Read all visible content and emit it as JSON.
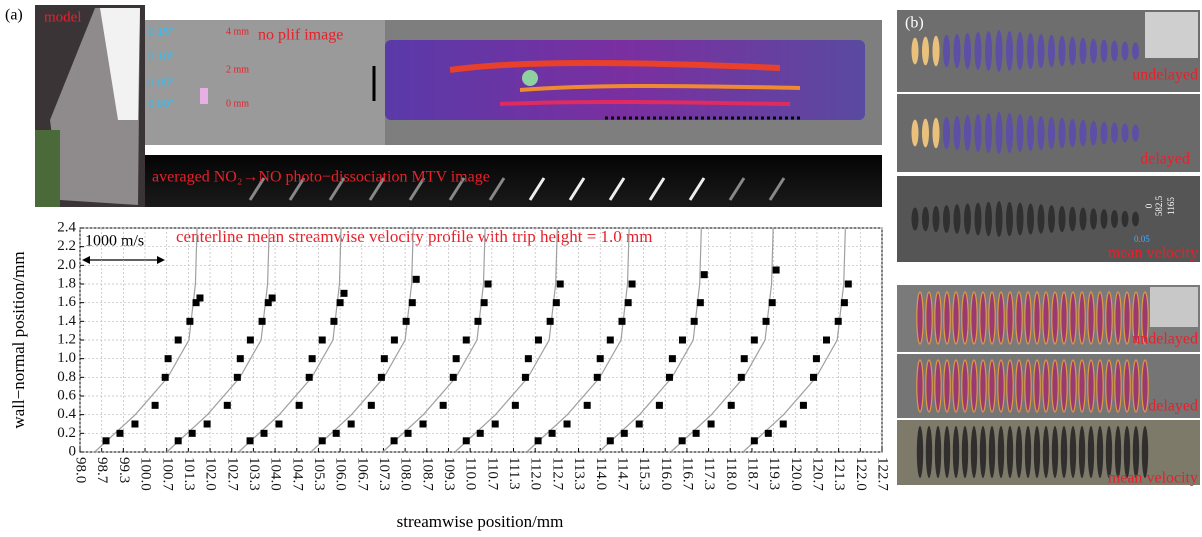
{
  "figure": {
    "panel_a": "(a)",
    "panel_b": "(b)",
    "model": "model",
    "plif": "no plif image",
    "mtv": "averaged NO₂→NO photo−dissociation MTV image",
    "scale_in": [
      "0.15″",
      "0.10″",
      "0.05″",
      "0.00″"
    ],
    "scale_mm": [
      "4 mm",
      "2 mm",
      "0 mm"
    ],
    "b_upper": [
      "undelayed",
      "delayed",
      "mean velocity"
    ],
    "b_lower": [
      "undelayed",
      "delayed",
      "mean velocity"
    ],
    "colorbar": [
      "0",
      "582.5",
      "1165"
    ],
    "colorbar_min": "0.05"
  },
  "chart_data": {
    "type": "scatter",
    "title": "centerline mean streamwise velocity profile with trip height = 1.0 mm",
    "xlabel": "streamwise position/mm",
    "ylabel": "wall−normal position/mm",
    "scale_bar": "1000 m/s",
    "grid": true,
    "xlim": [
      98,
      122.667
    ],
    "ylim": [
      0,
      2.4
    ],
    "xticks": [
      {
        "value": 98,
        "label": "98.0"
      },
      {
        "value": 98.667,
        "label": "98.7"
      },
      {
        "value": 99.333,
        "label": "99.3"
      },
      {
        "value": 100,
        "label": "100.0"
      },
      {
        "value": 100.667,
        "label": "100.7"
      },
      {
        "value": 101.333,
        "label": "101.3"
      },
      {
        "value": 102,
        "label": "102.0"
      },
      {
        "value": 102.667,
        "label": "102.7"
      },
      {
        "value": 103.333,
        "label": "103.3"
      },
      {
        "value": 104,
        "label": "104.0"
      },
      {
        "value": 104.667,
        "label": "104.7"
      },
      {
        "value": 105.333,
        "label": "105.3"
      },
      {
        "value": 106,
        "label": "106.0"
      },
      {
        "value": 106.667,
        "label": "106.7"
      },
      {
        "value": 107.333,
        "label": "107.3"
      },
      {
        "value": 108,
        "label": "108.0"
      },
      {
        "value": 108.667,
        "label": "108.7"
      },
      {
        "value": 109.333,
        "label": "109.3"
      },
      {
        "value": 110,
        "label": "110.0"
      },
      {
        "value": 110.667,
        "label": "110.7"
      },
      {
        "value": 111.333,
        "label": "111.3"
      },
      {
        "value": 112,
        "label": "112.0"
      },
      {
        "value": 112.667,
        "label": "112.7"
      },
      {
        "value": 113.333,
        "label": "113.3"
      },
      {
        "value": 114,
        "label": "114.0"
      },
      {
        "value": 114.667,
        "label": "114.7"
      },
      {
        "value": 115.333,
        "label": "115.3"
      },
      {
        "value": 116,
        "label": "116.0"
      },
      {
        "value": 116.667,
        "label": "116.7"
      },
      {
        "value": 117.333,
        "label": "117.3"
      },
      {
        "value": 118,
        "label": "118.0"
      },
      {
        "value": 118.667,
        "label": "118.7"
      },
      {
        "value": 119.333,
        "label": "119.3"
      },
      {
        "value": 120,
        "label": "120.0"
      },
      {
        "value": 120.667,
        "label": "120.7"
      },
      {
        "value": 121.333,
        "label": "121.3"
      },
      {
        "value": 122,
        "label": "122.0"
      },
      {
        "value": 122.667,
        "label": "122.7"
      }
    ],
    "yticks": [
      0,
      0.2,
      0.4,
      0.6,
      0.8,
      {
        "value": 1,
        "label": "1.0"
      },
      1.2,
      1.4,
      1.6,
      1.8,
      {
        "value": 2,
        "label": "2.0"
      },
      2.2,
      2.4
    ],
    "ref_y": [
      0,
      0.4,
      0.8,
      1.2,
      1.8,
      2.4
    ],
    "ref_color": "#a0a0a0",
    "series": [
      {
        "color": "#000000",
        "x": [
          98.8,
          99.23,
          99.69,
          100.31,
          100.62,
          100.71,
          101.02,
          101.38,
          101.57,
          101.69
        ],
        "y": [
          0.12,
          0.2,
          0.3,
          0.5,
          0.8,
          1.0,
          1.2,
          1.4,
          1.6,
          1.65
        ],
        "ref_x": [
          98.45,
          99.7,
          100.7,
          101.35,
          101.55,
          101.6
        ]
      },
      {
        "color": "#000000",
        "x": [
          101.02,
          101.45,
          101.91,
          102.53,
          102.84,
          102.93,
          103.24,
          103.6,
          103.79,
          103.91
        ],
        "y": [
          0.12,
          0.2,
          0.3,
          0.5,
          0.8,
          1.0,
          1.2,
          1.4,
          1.6,
          1.65
        ],
        "ref_x": [
          100.67,
          101.92,
          102.92,
          103.57,
          103.77,
          103.82
        ]
      },
      {
        "color": "#000000",
        "x": [
          103.23,
          103.66,
          104.12,
          104.74,
          105.05,
          105.14,
          105.45,
          105.81,
          106.0,
          106.12
        ],
        "y": [
          0.12,
          0.2,
          0.3,
          0.5,
          0.8,
          1.0,
          1.2,
          1.4,
          1.6,
          1.7
        ],
        "ref_x": [
          102.88,
          104.13,
          105.13,
          105.78,
          105.98,
          106.03
        ]
      },
      {
        "color": "#000000",
        "x": [
          105.45,
          105.88,
          106.34,
          106.96,
          107.27,
          107.36,
          107.67,
          108.03,
          108.22,
          108.34
        ],
        "y": [
          0.12,
          0.2,
          0.3,
          0.5,
          0.8,
          1.0,
          1.2,
          1.4,
          1.6,
          1.85
        ],
        "ref_x": [
          105.1,
          106.35,
          107.35,
          108.0,
          108.2,
          108.25
        ]
      },
      {
        "color": "#000000",
        "x": [
          107.66,
          108.09,
          108.55,
          109.17,
          109.48,
          109.57,
          109.88,
          110.24,
          110.43,
          110.55
        ],
        "y": [
          0.12,
          0.2,
          0.3,
          0.5,
          0.8,
          1.0,
          1.2,
          1.4,
          1.6,
          1.8
        ],
        "ref_x": [
          107.31,
          108.56,
          109.56,
          110.21,
          110.41,
          110.46
        ]
      },
      {
        "color": "#000000",
        "x": [
          109.88,
          110.31,
          110.77,
          111.39,
          111.7,
          111.79,
          112.1,
          112.46,
          112.65,
          112.77
        ],
        "y": [
          0.12,
          0.2,
          0.3,
          0.5,
          0.8,
          1.0,
          1.2,
          1.4,
          1.6,
          1.8
        ],
        "ref_x": [
          109.53,
          110.78,
          111.78,
          112.43,
          112.63,
          112.68
        ]
      },
      {
        "color": "#000000",
        "x": [
          112.09,
          112.52,
          112.98,
          113.6,
          113.91,
          114.0,
          114.31,
          114.67,
          114.86,
          114.98
        ],
        "y": [
          0.12,
          0.2,
          0.3,
          0.5,
          0.8,
          1.0,
          1.2,
          1.4,
          1.6,
          1.8
        ],
        "ref_x": [
          111.74,
          112.99,
          113.99,
          114.64,
          114.84,
          114.89
        ]
      },
      {
        "color": "#000000",
        "x": [
          114.31,
          114.74,
          115.2,
          115.82,
          116.13,
          116.22,
          116.53,
          116.89,
          117.08,
          117.2
        ],
        "y": [
          0.12,
          0.2,
          0.3,
          0.5,
          0.8,
          1.0,
          1.2,
          1.4,
          1.6,
          1.9
        ],
        "ref_x": [
          113.96,
          115.21,
          116.21,
          116.86,
          117.06,
          117.11
        ]
      },
      {
        "color": "#000000",
        "x": [
          116.52,
          116.95,
          117.41,
          118.03,
          118.34,
          118.43,
          118.74,
          119.1,
          119.29,
          119.41
        ],
        "y": [
          0.12,
          0.2,
          0.3,
          0.5,
          0.8,
          1.0,
          1.2,
          1.4,
          1.6,
          1.95
        ],
        "ref_x": [
          116.17,
          117.42,
          118.42,
          119.07,
          119.27,
          119.32
        ]
      },
      {
        "color": "#000000",
        "x": [
          118.74,
          119.17,
          119.63,
          120.25,
          120.56,
          120.65,
          120.96,
          121.32,
          121.51,
          121.63
        ],
        "y": [
          0.12,
          0.2,
          0.3,
          0.5,
          0.8,
          1.0,
          1.2,
          1.4,
          1.6,
          1.8
        ],
        "ref_x": [
          118.39,
          119.64,
          120.64,
          121.29,
          121.49,
          121.54
        ]
      }
    ]
  }
}
